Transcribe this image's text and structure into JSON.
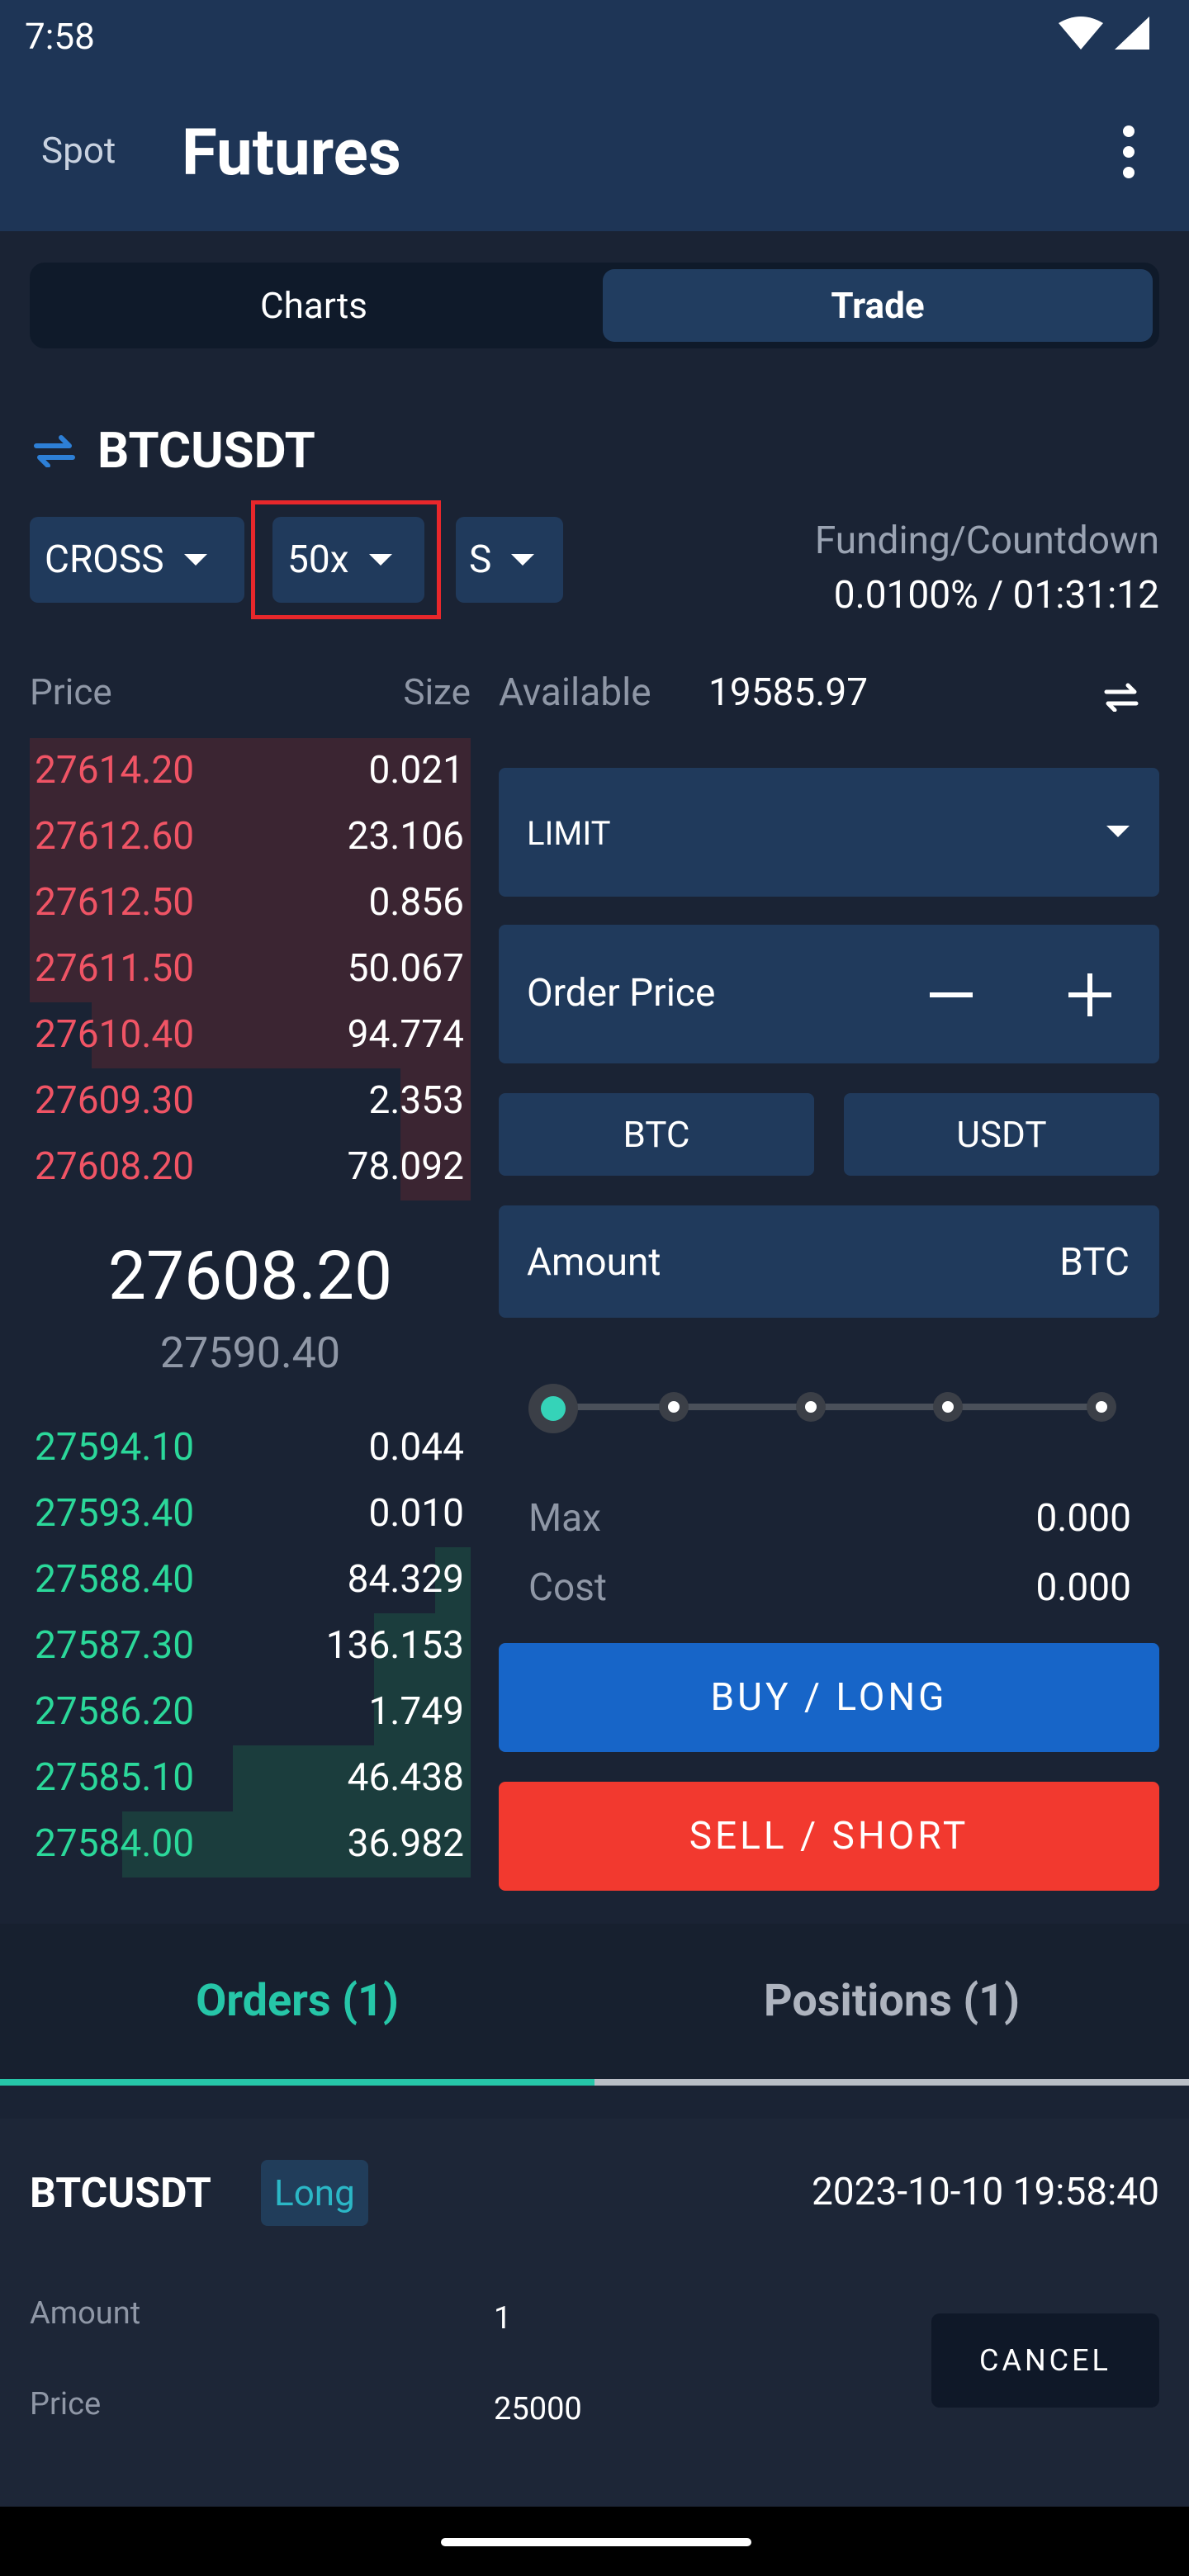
{
  "status_bar": {
    "time": "7:58"
  },
  "header": {
    "spot_label": "Spot",
    "title": "Futures"
  },
  "segments": {
    "charts": "Charts",
    "trade": "Trade"
  },
  "pair": "BTCUSDT",
  "controls": {
    "margin_mode": "CROSS",
    "leverage": "50x",
    "position_mode": "S",
    "funding_label": "Funding/Countdown",
    "funding_value": "0.0100% / 01:31:12"
  },
  "orderbook": {
    "price_header": "Price",
    "size_header": "Size",
    "asks": [
      {
        "price": "27614.20",
        "size": "0.021",
        "depth": 1.0
      },
      {
        "price": "27612.60",
        "size": "23.106",
        "depth": 1.0
      },
      {
        "price": "27612.50",
        "size": "0.856",
        "depth": 1.0
      },
      {
        "price": "27611.50",
        "size": "50.067",
        "depth": 1.0
      },
      {
        "price": "27610.40",
        "size": "94.774",
        "depth": 0.86
      },
      {
        "price": "27609.30",
        "size": "2.353",
        "depth": 0.16
      },
      {
        "price": "27608.20",
        "size": "78.092",
        "depth": 0.16
      }
    ],
    "last_price": "27608.20",
    "mark_price": "27590.40",
    "bids": [
      {
        "price": "27594.10",
        "size": "0.044",
        "depth": 0.0
      },
      {
        "price": "27593.40",
        "size": "0.010",
        "depth": 0.0
      },
      {
        "price": "27588.40",
        "size": "84.329",
        "depth": 0.08
      },
      {
        "price": "27587.30",
        "size": "136.153",
        "depth": 0.22
      },
      {
        "price": "27586.20",
        "size": "1.749",
        "depth": 0.22
      },
      {
        "price": "27585.10",
        "size": "46.438",
        "depth": 0.54
      },
      {
        "price": "27584.00",
        "size": "36.982",
        "depth": 0.79
      }
    ]
  },
  "trade_panel": {
    "available_label": "Available",
    "available_value": "19585.97",
    "order_type": "LIMIT",
    "order_price_label": "Order Price",
    "unit_btc": "BTC",
    "unit_usdt": "USDT",
    "amount_label": "Amount",
    "amount_unit": "BTC",
    "slider_value": 0,
    "max_label": "Max",
    "max_value": "0.000",
    "cost_label": "Cost",
    "cost_value": "0.000",
    "buy_label": "BUY / LONG",
    "sell_label": "SELL / SHORT"
  },
  "tabs": {
    "orders": "Orders (1)",
    "positions": "Positions (1)"
  },
  "order": {
    "pair": "BTCUSDT",
    "side": "Long",
    "time": "2023-10-10 19:58:40",
    "amount_label": "Amount",
    "amount_value": "1",
    "price_label": "Price",
    "price_value": "25000",
    "cancel_label": "CANCEL"
  },
  "colors": {
    "buy": "#1765c8",
    "sell": "#f2392f",
    "accent": "#26c6a8",
    "ask_text": "#f05465",
    "bid_text": "#2bd89a"
  }
}
